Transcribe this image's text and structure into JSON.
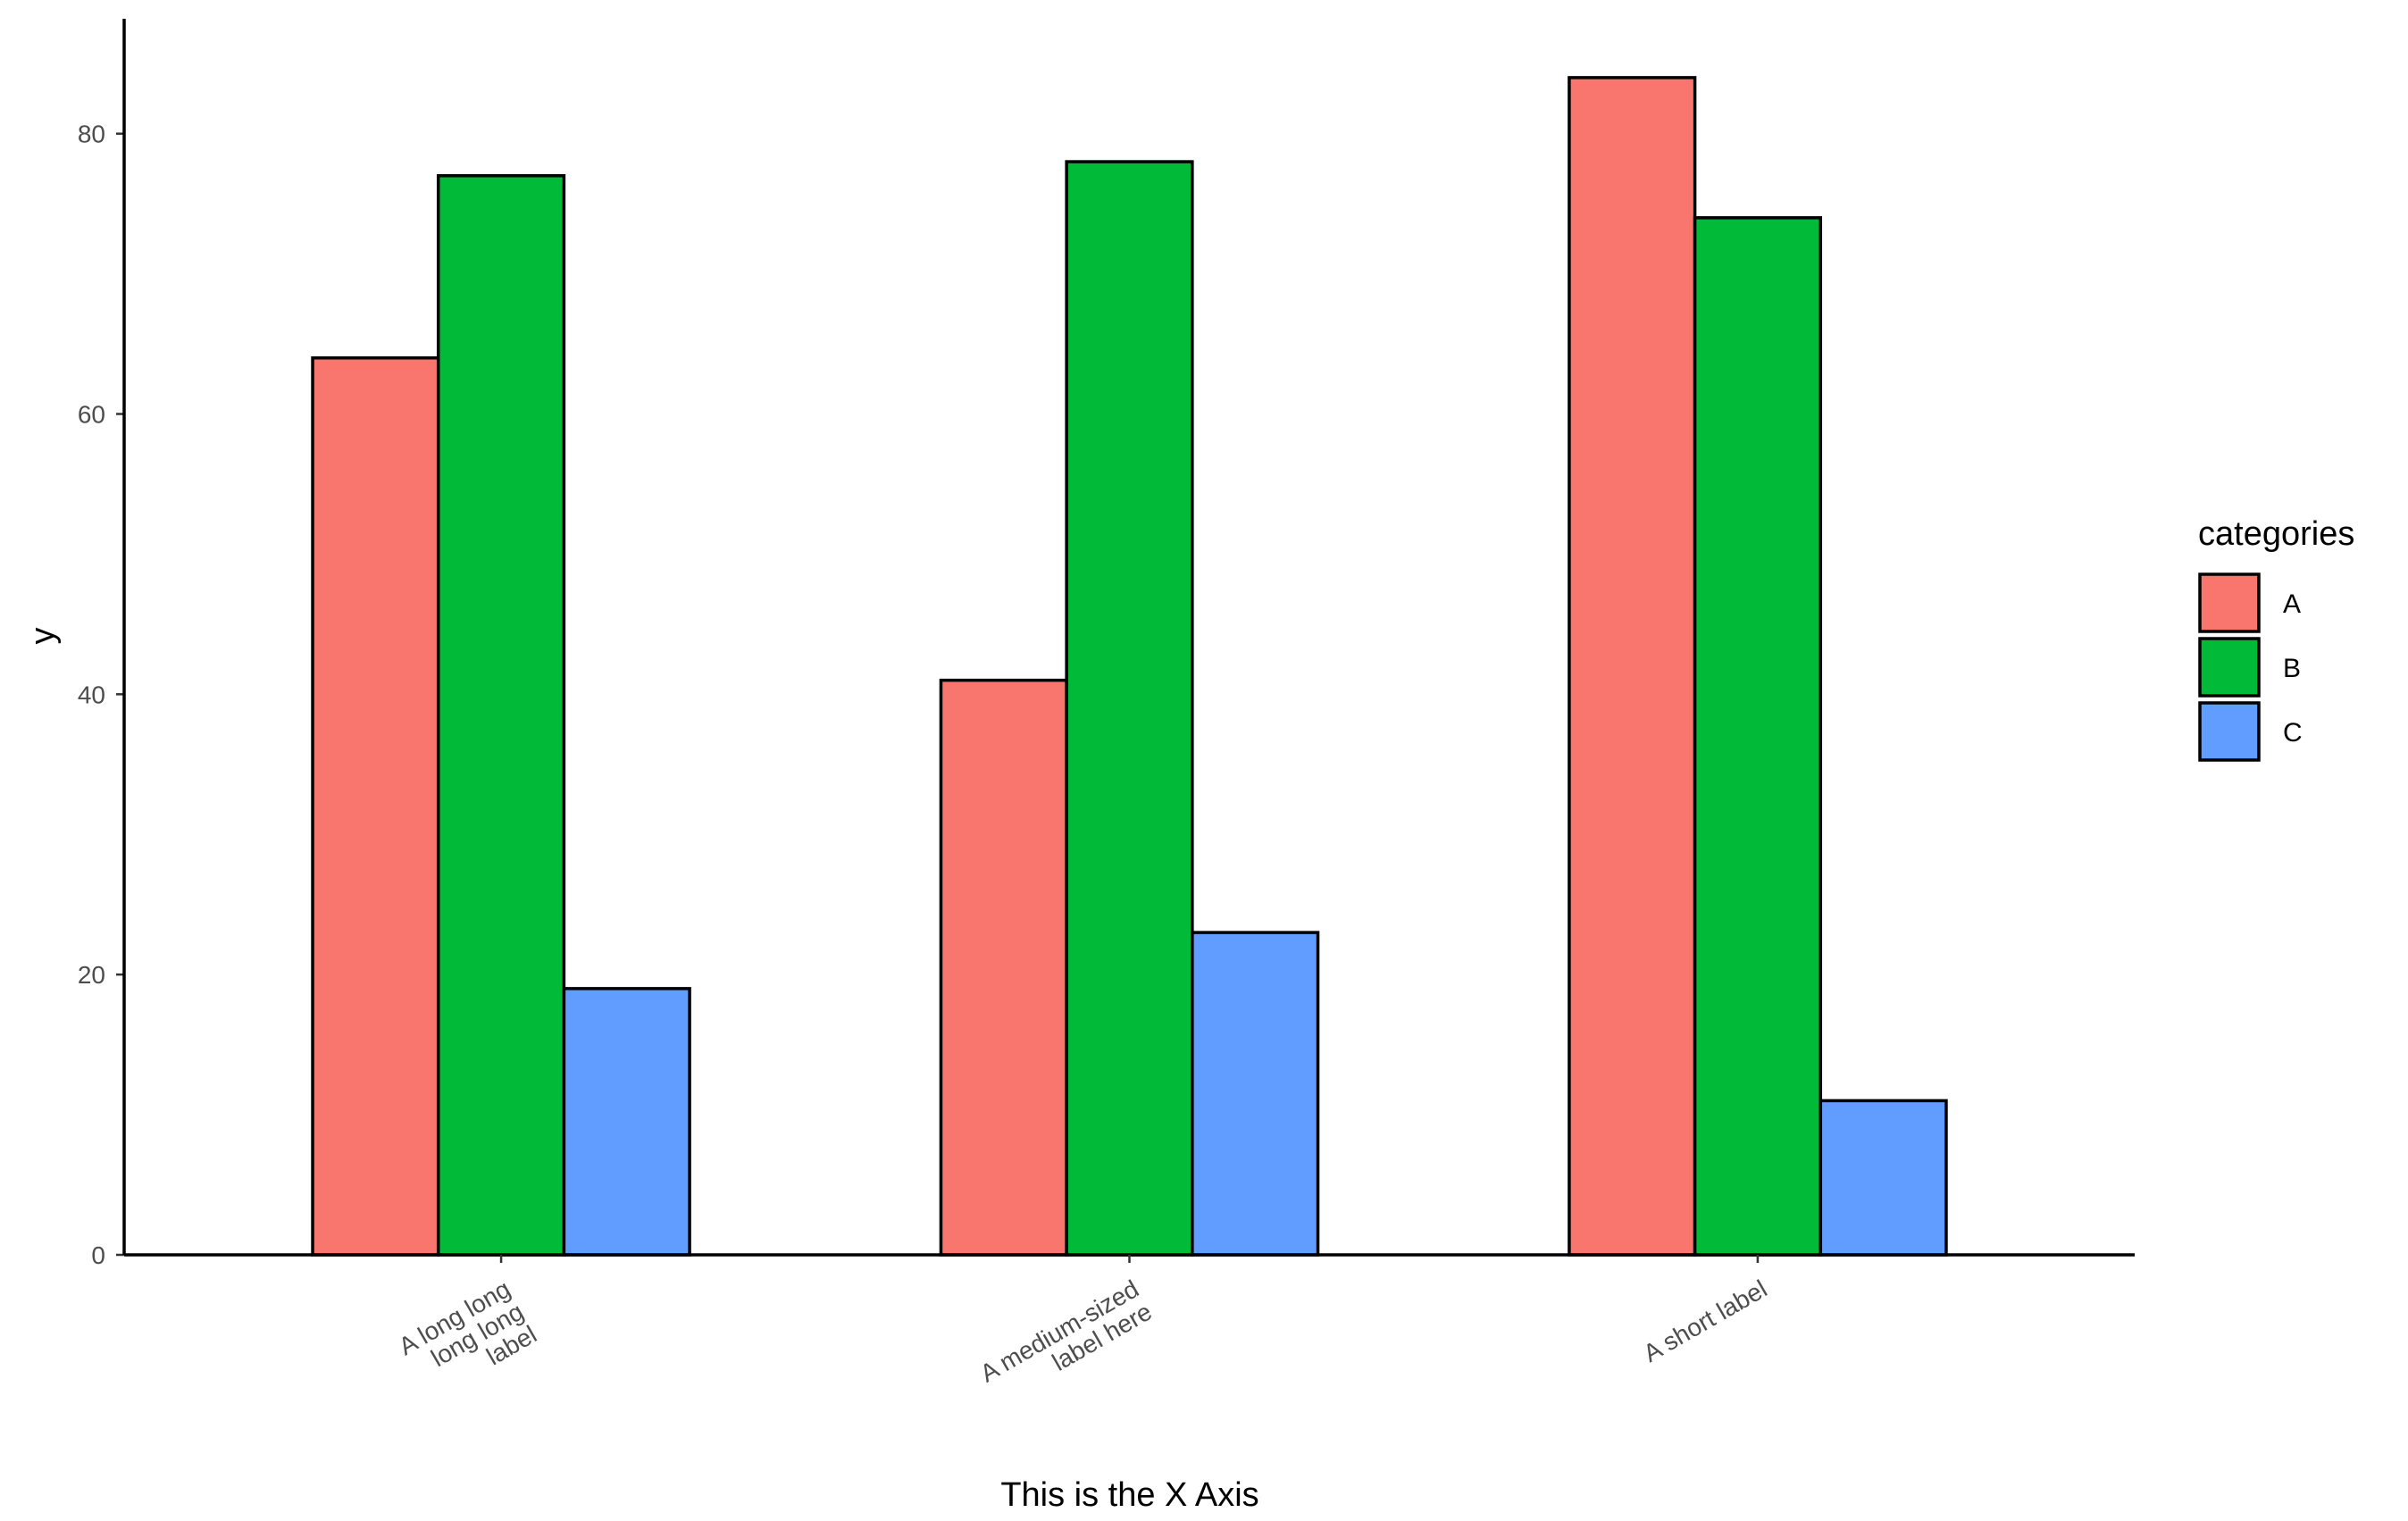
{
  "chart_data": {
    "type": "bar",
    "x_label": "This is the X Axis",
    "y_label": "y",
    "legend_title": "categories",
    "legend_position": "right",
    "categories": [
      "A long long\nlong long\nlabel",
      "A medium-sized\nlabel here",
      "A short label"
    ],
    "series": [
      {
        "name": "A",
        "color": "#F8766D",
        "values": [
          64,
          41,
          84
        ]
      },
      {
        "name": "B",
        "color": "#00BA38",
        "values": [
          77,
          78,
          74
        ]
      },
      {
        "name": "C",
        "color": "#619CFF",
        "values": [
          19,
          23,
          11
        ]
      }
    ],
    "ylim": [
      0,
      88.2
    ],
    "yticks": [
      0,
      20,
      40,
      60,
      80
    ],
    "grid": false
  }
}
